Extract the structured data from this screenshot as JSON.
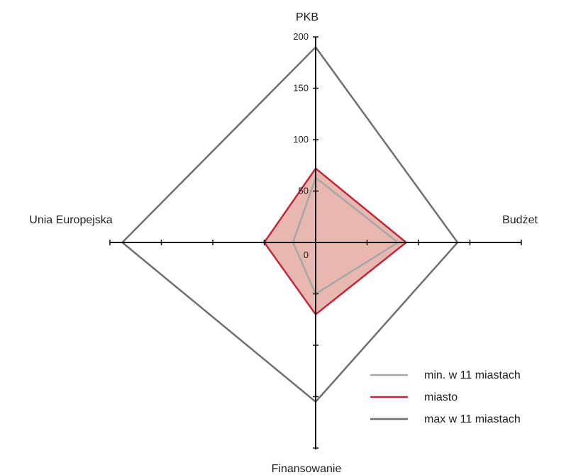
{
  "chart_data": {
    "type": "radar",
    "axes": [
      "PKB",
      "Budżet",
      "Finansowanie",
      "Unia Europejska"
    ],
    "radial_range": [
      0,
      200
    ],
    "radial_ticks": [
      0,
      50,
      100,
      150,
      200
    ],
    "series": [
      {
        "name": "min. w 11 miastach",
        "values": [
          63,
          80,
          50,
          22
        ],
        "color": "#a6a6a6",
        "fill": false
      },
      {
        "name": "miasto",
        "values": [
          72,
          88,
          70,
          50
        ],
        "color": "#c0283a",
        "fill": true,
        "fill_color": "#e8b8b0"
      },
      {
        "name": "max w 11 miastach",
        "values": [
          190,
          138,
          155,
          188
        ],
        "color": "#6f6f6f",
        "fill": false
      }
    ],
    "legend": "bottom-right",
    "grid": false
  }
}
